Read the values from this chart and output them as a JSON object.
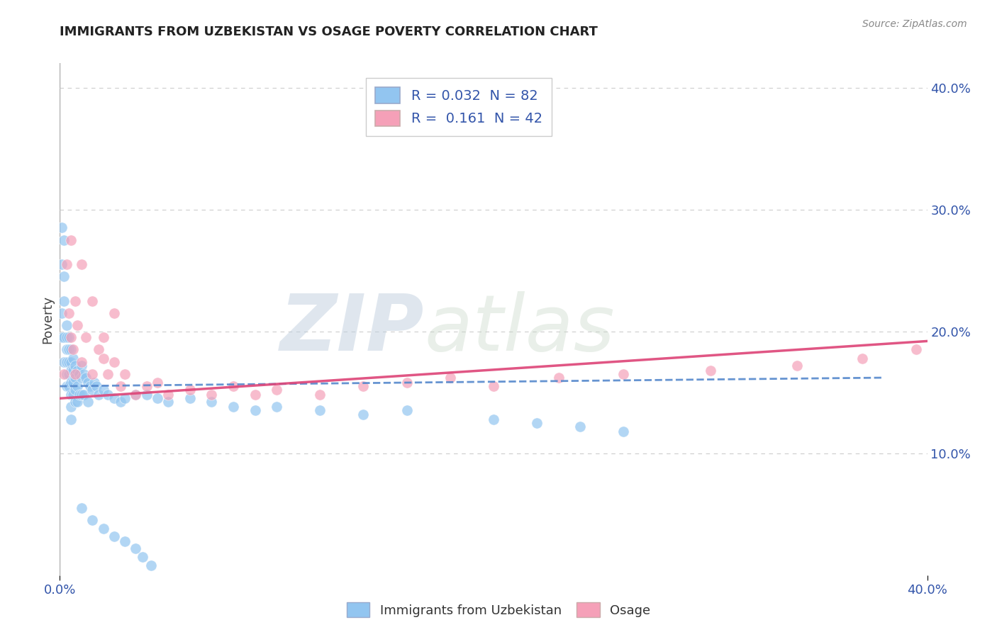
{
  "title": "IMMIGRANTS FROM UZBEKISTAN VS OSAGE POVERTY CORRELATION CHART",
  "source_text": "Source: ZipAtlas.com",
  "ylabel": "Poverty",
  "xlim": [
    0.0,
    0.4
  ],
  "ylim": [
    0.0,
    0.42
  ],
  "series1_color": "#92c5f0",
  "series2_color": "#f5a0b8",
  "series1_label": "Immigrants from Uzbekistan",
  "series2_label": "Osage",
  "R1": 0.032,
  "N1": 82,
  "R2": 0.161,
  "N2": 42,
  "trend_color1": "#5588cc",
  "trend_color2": "#dd4477",
  "watermark_zip": "ZIP",
  "watermark_atlas": "atlas",
  "background_color": "#ffffff",
  "series1_x": [
    0.001,
    0.001,
    0.001,
    0.001,
    0.002,
    0.002,
    0.002,
    0.002,
    0.002,
    0.003,
    0.003,
    0.003,
    0.003,
    0.003,
    0.003,
    0.004,
    0.004,
    0.004,
    0.004,
    0.004,
    0.005,
    0.005,
    0.005,
    0.005,
    0.005,
    0.005,
    0.005,
    0.006,
    0.006,
    0.006,
    0.006,
    0.007,
    0.007,
    0.007,
    0.007,
    0.008,
    0.008,
    0.008,
    0.009,
    0.009,
    0.01,
    0.01,
    0.01,
    0.011,
    0.011,
    0.012,
    0.013,
    0.013,
    0.014,
    0.015,
    0.016,
    0.017,
    0.018,
    0.02,
    0.022,
    0.025,
    0.028,
    0.03,
    0.035,
    0.04,
    0.045,
    0.05,
    0.06,
    0.07,
    0.08,
    0.09,
    0.1,
    0.12,
    0.14,
    0.16,
    0.2,
    0.22,
    0.24,
    0.26,
    0.01,
    0.015,
    0.02,
    0.025,
    0.03,
    0.035,
    0.038,
    0.042
  ],
  "series1_y": [
    0.285,
    0.255,
    0.215,
    0.195,
    0.275,
    0.245,
    0.225,
    0.195,
    0.175,
    0.205,
    0.195,
    0.185,
    0.175,
    0.165,
    0.155,
    0.195,
    0.185,
    0.175,
    0.165,
    0.155,
    0.185,
    0.175,
    0.168,
    0.158,
    0.148,
    0.138,
    0.128,
    0.178,
    0.168,
    0.158,
    0.148,
    0.172,
    0.162,
    0.152,
    0.142,
    0.168,
    0.155,
    0.142,
    0.165,
    0.148,
    0.172,
    0.162,
    0.148,
    0.165,
    0.148,
    0.162,
    0.158,
    0.142,
    0.155,
    0.152,
    0.158,
    0.155,
    0.148,
    0.152,
    0.148,
    0.145,
    0.142,
    0.145,
    0.148,
    0.148,
    0.145,
    0.142,
    0.145,
    0.142,
    0.138,
    0.135,
    0.138,
    0.135,
    0.132,
    0.135,
    0.128,
    0.125,
    0.122,
    0.118,
    0.055,
    0.045,
    0.038,
    0.032,
    0.028,
    0.022,
    0.015,
    0.008
  ],
  "series2_x": [
    0.002,
    0.003,
    0.004,
    0.005,
    0.006,
    0.007,
    0.008,
    0.01,
    0.012,
    0.015,
    0.018,
    0.02,
    0.022,
    0.025,
    0.028,
    0.03,
    0.035,
    0.04,
    0.045,
    0.05,
    0.06,
    0.07,
    0.08,
    0.09,
    0.1,
    0.12,
    0.14,
    0.16,
    0.18,
    0.2,
    0.23,
    0.26,
    0.3,
    0.34,
    0.37,
    0.395,
    0.005,
    0.007,
    0.01,
    0.015,
    0.02,
    0.025
  ],
  "series2_y": [
    0.165,
    0.255,
    0.215,
    0.195,
    0.185,
    0.225,
    0.205,
    0.175,
    0.195,
    0.165,
    0.185,
    0.178,
    0.165,
    0.175,
    0.155,
    0.165,
    0.148,
    0.155,
    0.158,
    0.148,
    0.152,
    0.148,
    0.155,
    0.148,
    0.152,
    0.148,
    0.155,
    0.158,
    0.162,
    0.155,
    0.162,
    0.165,
    0.168,
    0.172,
    0.178,
    0.185,
    0.275,
    0.165,
    0.255,
    0.225,
    0.195,
    0.215
  ]
}
